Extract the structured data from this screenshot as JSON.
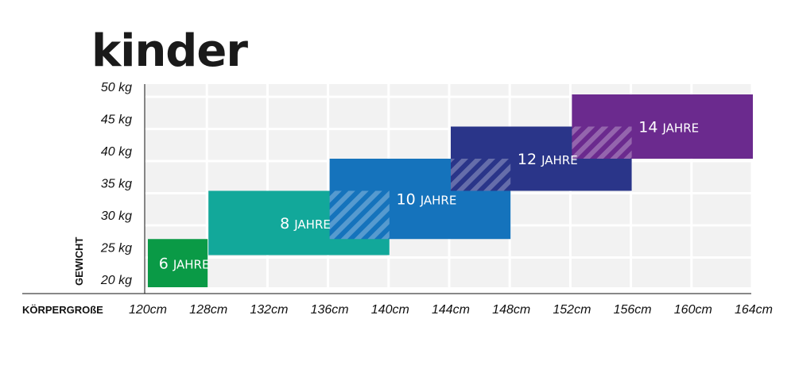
{
  "chart_data": {
    "type": "bar",
    "title": "kinder",
    "xlabel": "KÖRPERGROßE",
    "ylabel": "GEWICHT",
    "x_ticks": [
      "120cm",
      "128cm",
      "132cm",
      "136cm",
      "140cm",
      "144cm",
      "148cm",
      "152cm",
      "156cm",
      "160cm",
      "164cm"
    ],
    "y_ticks": [
      "20 kg",
      "25 kg",
      "30 kg",
      "35 kg",
      "40 kg",
      "45 kg",
      "50 kg"
    ],
    "grid": true,
    "series": [
      {
        "name": "6",
        "unit": "JAHRE",
        "height_from": "120cm",
        "height_to": "128cm",
        "weight_from": 20,
        "weight_to": 27.5,
        "color": "#0a9a46"
      },
      {
        "name": "8",
        "unit": "JAHRE",
        "height_from": "128cm",
        "height_to": "140cm",
        "weight_from": 25,
        "weight_to": 35,
        "color": "#12a89a"
      },
      {
        "name": "10",
        "unit": "JAHRE",
        "height_from": "136cm",
        "height_to": "148cm",
        "weight_from": 27.5,
        "weight_to": 40,
        "color": "#1573bc"
      },
      {
        "name": "12",
        "unit": "JAHRE",
        "height_from": "144cm",
        "height_to": "156cm",
        "weight_from": 35,
        "weight_to": 45,
        "color": "#2a3589"
      },
      {
        "name": "14",
        "unit": "JAHRE",
        "height_from": "152cm",
        "height_to": "164cm",
        "weight_from": 40,
        "weight_to": 50,
        "color": "#6b2a8e"
      }
    ]
  }
}
